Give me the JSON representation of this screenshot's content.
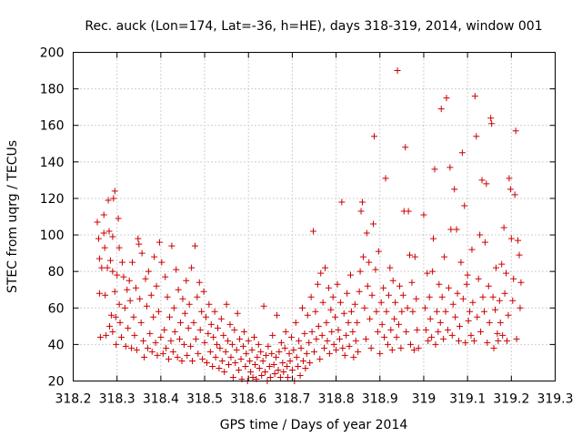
{
  "chart_data": {
    "type": "scatter",
    "title": "Rec. auck (Lon=174, Lat=-36, h=HE), days 318-319, 2014, window 001",
    "xlabel": "GPS time / Days of year 2014",
    "ylabel": "STEC from uqrg / TECUs",
    "xlim": [
      318.2,
      319.3
    ],
    "ylim": [
      20,
      200
    ],
    "xticks": [
      "318.2",
      "318.3",
      "318.4",
      "318.5",
      "318.6",
      "318.7",
      "318.8",
      "318.9",
      "319",
      "319.1",
      "319.2",
      "319.3"
    ],
    "yticks": [
      "20",
      "40",
      "60",
      "80",
      "100",
      "120",
      "140",
      "160",
      "180",
      "200"
    ],
    "grid": true,
    "marker": "plus",
    "color": "#cc0000",
    "points": [
      [
        318.255,
        107
      ],
      [
        318.258,
        98
      ],
      [
        318.26,
        87
      ],
      [
        318.26,
        68
      ],
      [
        318.262,
        44
      ],
      [
        318.265,
        82
      ],
      [
        318.27,
        111
      ],
      [
        318.27,
        101
      ],
      [
        318.272,
        93
      ],
      [
        318.273,
        67
      ],
      [
        318.275,
        45
      ],
      [
        318.278,
        82
      ],
      [
        318.28,
        119
      ],
      [
        318.282,
        102
      ],
      [
        318.283,
        50
      ],
      [
        318.285,
        86
      ],
      [
        318.287,
        56
      ],
      [
        318.29,
        80
      ],
      [
        318.29,
        99
      ],
      [
        318.29,
        47
      ],
      [
        318.292,
        120
      ],
      [
        318.295,
        124
      ],
      [
        318.295,
        69
      ],
      [
        318.297,
        55
      ],
      [
        318.298,
        40
      ],
      [
        318.3,
        78
      ],
      [
        318.303,
        109
      ],
      [
        318.305,
        93
      ],
      [
        318.305,
        62
      ],
      [
        318.307,
        52
      ],
      [
        318.31,
        44
      ],
      [
        318.312,
        85
      ],
      [
        318.315,
        77
      ],
      [
        318.318,
        60
      ],
      [
        318.32,
        39
      ],
      [
        318.323,
        70
      ],
      [
        318.325,
        49
      ],
      [
        318.328,
        75
      ],
      [
        318.33,
        64
      ],
      [
        318.333,
        38
      ],
      [
        318.335,
        85
      ],
      [
        318.338,
        55
      ],
      [
        318.34,
        45
      ],
      [
        318.343,
        71
      ],
      [
        318.345,
        37
      ],
      [
        318.348,
        98
      ],
      [
        318.35,
        95
      ],
      [
        318.352,
        65
      ],
      [
        318.355,
        52
      ],
      [
        318.357,
        90
      ],
      [
        318.36,
        42
      ],
      [
        318.362,
        33
      ],
      [
        318.365,
        76
      ],
      [
        318.368,
        61
      ],
      [
        318.37,
        38
      ],
      [
        318.372,
        80
      ],
      [
        318.375,
        46
      ],
      [
        318.378,
        67
      ],
      [
        318.38,
        36
      ],
      [
        318.383,
        55
      ],
      [
        318.385,
        88
      ],
      [
        318.388,
        41
      ],
      [
        318.39,
        72
      ],
      [
        318.392,
        34
      ],
      [
        318.395,
        58
      ],
      [
        318.397,
        96
      ],
      [
        318.4,
        44
      ],
      [
        318.402,
        85
      ],
      [
        318.405,
        35
      ],
      [
        318.408,
        48
      ],
      [
        318.41,
        77
      ],
      [
        318.412,
        38
      ],
      [
        318.415,
        66
      ],
      [
        318.418,
        32
      ],
      [
        318.42,
        55
      ],
      [
        318.423,
        42
      ],
      [
        318.425,
        94
      ],
      [
        318.428,
        36
      ],
      [
        318.43,
        60
      ],
      [
        318.432,
        47
      ],
      [
        318.435,
        81
      ],
      [
        318.438,
        33
      ],
      [
        318.44,
        70
      ],
      [
        318.443,
        43
      ],
      [
        318.445,
        52
      ],
      [
        318.448,
        31
      ],
      [
        318.45,
        65
      ],
      [
        318.453,
        40
      ],
      [
        318.455,
        57
      ],
      [
        318.458,
        75
      ],
      [
        318.46,
        34
      ],
      [
        318.463,
        49
      ],
      [
        318.465,
        62
      ],
      [
        318.468,
        39
      ],
      [
        318.47,
        82
      ],
      [
        318.472,
        31
      ],
      [
        318.475,
        52
      ],
      [
        318.478,
        94
      ],
      [
        318.48,
        43
      ],
      [
        318.483,
        66
      ],
      [
        318.485,
        35
      ],
      [
        318.488,
        74
      ],
      [
        318.49,
        48
      ],
      [
        318.493,
        58
      ],
      [
        318.495,
        32
      ],
      [
        318.498,
        69
      ],
      [
        318.5,
        41
      ],
      [
        318.503,
        55
      ],
      [
        318.505,
        30
      ],
      [
        318.508,
        46
      ],
      [
        318.51,
        62
      ],
      [
        318.513,
        36
      ],
      [
        318.515,
        51
      ],
      [
        318.518,
        28
      ],
      [
        318.52,
        44
      ],
      [
        318.523,
        58
      ],
      [
        318.525,
        33
      ],
      [
        318.528,
        40
      ],
      [
        318.53,
        49
      ],
      [
        318.533,
        27
      ],
      [
        318.535,
        38
      ],
      [
        318.538,
        54
      ],
      [
        318.54,
        31
      ],
      [
        318.543,
        45
      ],
      [
        318.545,
        25
      ],
      [
        318.548,
        36
      ],
      [
        318.55,
        62
      ],
      [
        318.553,
        42
      ],
      [
        318.555,
        29
      ],
      [
        318.558,
        51
      ],
      [
        318.56,
        33
      ],
      [
        318.563,
        40
      ],
      [
        318.565,
        22
      ],
      [
        318.568,
        48
      ],
      [
        318.57,
        30
      ],
      [
        318.573,
        37
      ],
      [
        318.575,
        57
      ],
      [
        318.578,
        26
      ],
      [
        318.58,
        43
      ],
      [
        318.583,
        32
      ],
      [
        318.585,
        21
      ],
      [
        318.588,
        39
      ],
      [
        318.59,
        47
      ],
      [
        318.593,
        28
      ],
      [
        318.595,
        35
      ],
      [
        318.598,
        20
      ],
      [
        318.6,
        42
      ],
      [
        318.603,
        31
      ],
      [
        318.605,
        25
      ],
      [
        318.608,
        37
      ],
      [
        318.61,
        22
      ],
      [
        318.613,
        44
      ],
      [
        318.615,
        29
      ],
      [
        318.618,
        21
      ],
      [
        318.62,
        33
      ],
      [
        318.623,
        40
      ],
      [
        318.625,
        27
      ],
      [
        318.628,
        36
      ],
      [
        318.63,
        23
      ],
      [
        318.633,
        31
      ],
      [
        318.635,
        61
      ],
      [
        318.638,
        25
      ],
      [
        318.64,
        34
      ],
      [
        318.643,
        20
      ],
      [
        318.645,
        39
      ],
      [
        318.648,
        28
      ],
      [
        318.65,
        22
      ],
      [
        318.653,
        35
      ],
      [
        318.655,
        45
      ],
      [
        318.658,
        29
      ],
      [
        318.66,
        24
      ],
      [
        318.663,
        33
      ],
      [
        318.665,
        56
      ],
      [
        318.668,
        26
      ],
      [
        318.67,
        36
      ],
      [
        318.673,
        22
      ],
      [
        318.675,
        41
      ],
      [
        318.678,
        30
      ],
      [
        318.68,
        25
      ],
      [
        318.683,
        38
      ],
      [
        318.685,
        47
      ],
      [
        318.688,
        28
      ],
      [
        318.69,
        22
      ],
      [
        318.693,
        35
      ],
      [
        318.695,
        31
      ],
      [
        318.698,
        44
      ],
      [
        318.7,
        26
      ],
      [
        318.703,
        37
      ],
      [
        318.705,
        20
      ],
      [
        318.708,
        52
      ],
      [
        318.71,
        33
      ],
      [
        318.713,
        28
      ],
      [
        318.715,
        42
      ],
      [
        318.718,
        23
      ],
      [
        318.72,
        38
      ],
      [
        318.723,
        60
      ],
      [
        318.725,
        31
      ],
      [
        318.728,
        46
      ],
      [
        318.73,
        27
      ],
      [
        318.733,
        35
      ],
      [
        318.735,
        56
      ],
      [
        318.738,
        41
      ],
      [
        318.74,
        30
      ],
      [
        318.743,
        66
      ],
      [
        318.745,
        47
      ],
      [
        318.748,
        102
      ],
      [
        318.75,
        36
      ],
      [
        318.753,
        58
      ],
      [
        318.755,
        43
      ],
      [
        318.758,
        73
      ],
      [
        318.76,
        50
      ],
      [
        318.763,
        32
      ],
      [
        318.765,
        79
      ],
      [
        318.768,
        45
      ],
      [
        318.77,
        63
      ],
      [
        318.773,
        38
      ],
      [
        318.775,
        82
      ],
      [
        318.778,
        52
      ],
      [
        318.78,
        42
      ],
      [
        318.783,
        71
      ],
      [
        318.785,
        35
      ],
      [
        318.788,
        59
      ],
      [
        318.79,
        47
      ],
      [
        318.793,
        66
      ],
      [
        318.795,
        40
      ],
      [
        318.798,
        55
      ],
      [
        318.8,
        37
      ],
      [
        318.803,
        73
      ],
      [
        318.805,
        48
      ],
      [
        318.808,
        43
      ],
      [
        318.81,
        63
      ],
      [
        318.813,
        118
      ],
      [
        318.815,
        38
      ],
      [
        318.818,
        57
      ],
      [
        318.82,
        34
      ],
      [
        318.823,
        45
      ],
      [
        318.825,
        68
      ],
      [
        318.828,
        52
      ],
      [
        318.83,
        39
      ],
      [
        318.833,
        78
      ],
      [
        318.835,
        58
      ],
      [
        318.838,
        47
      ],
      [
        318.84,
        33
      ],
      [
        318.843,
        62
      ],
      [
        318.845,
        42
      ],
      [
        318.848,
        52
      ],
      [
        318.85,
        36
      ],
      [
        318.853,
        69
      ],
      [
        318.855,
        80
      ],
      [
        318.857,
        113
      ],
      [
        318.86,
        118
      ],
      [
        318.862,
        88
      ],
      [
        318.865,
        60
      ],
      [
        318.868,
        43
      ],
      [
        318.87,
        101
      ],
      [
        318.872,
        72
      ],
      [
        318.875,
        85
      ],
      [
        318.877,
        54
      ],
      [
        318.88,
        38
      ],
      [
        318.882,
        67
      ],
      [
        318.885,
        106
      ],
      [
        318.887,
        154
      ],
      [
        318.89,
        81
      ],
      [
        318.892,
        58
      ],
      [
        318.895,
        47
      ],
      [
        318.897,
        91
      ],
      [
        318.9,
        35
      ],
      [
        318.903,
        63
      ],
      [
        318.905,
        51
      ],
      [
        318.908,
        71
      ],
      [
        318.91,
        44
      ],
      [
        318.913,
        131
      ],
      [
        318.915,
        58
      ],
      [
        318.918,
        40
      ],
      [
        318.92,
        67
      ],
      [
        318.923,
        82
      ],
      [
        318.925,
        48
      ],
      [
        318.928,
        37
      ],
      [
        318.93,
        75
      ],
      [
        318.933,
        54
      ],
      [
        318.935,
        63
      ],
      [
        318.938,
        44
      ],
      [
        318.94,
        190
      ],
      [
        318.943,
        51
      ],
      [
        318.945,
        72
      ],
      [
        318.948,
        38
      ],
      [
        318.95,
        58
      ],
      [
        318.953,
        67
      ],
      [
        318.955,
        113
      ],
      [
        318.958,
        148
      ],
      [
        318.96,
        47
      ],
      [
        318.963,
        60
      ],
      [
        318.965,
        113
      ],
      [
        318.968,
        89
      ],
      [
        318.97,
        40
      ],
      [
        318.973,
        74
      ],
      [
        318.975,
        58
      ],
      [
        318.978,
        37
      ],
      [
        318.98,
        88
      ],
      [
        318.983,
        65
      ],
      [
        318.985,
        48
      ],
      [
        318.988,
        38
      ],
      [
        319.0,
        111
      ],
      [
        319.003,
        60
      ],
      [
        319.005,
        48
      ],
      [
        319.008,
        79
      ],
      [
        319.01,
        42
      ],
      [
        319.013,
        66
      ],
      [
        319.015,
        54
      ],
      [
        319.018,
        44
      ],
      [
        319.02,
        80
      ],
      [
        319.022,
        98
      ],
      [
        319.025,
        136
      ],
      [
        319.027,
        40
      ],
      [
        319.03,
        58
      ],
      [
        319.033,
        47
      ],
      [
        319.035,
        73
      ],
      [
        319.038,
        52
      ],
      [
        319.04,
        169
      ],
      [
        319.042,
        66
      ],
      [
        319.045,
        43
      ],
      [
        319.047,
        88
      ],
      [
        319.05,
        58
      ],
      [
        319.052,
        175
      ],
      [
        319.055,
        48
      ],
      [
        319.057,
        71
      ],
      [
        319.06,
        137
      ],
      [
        319.062,
        103
      ],
      [
        319.065,
        45
      ],
      [
        319.067,
        62
      ],
      [
        319.07,
        125
      ],
      [
        319.072,
        55
      ],
      [
        319.075,
        103
      ],
      [
        319.077,
        68
      ],
      [
        319.08,
        42
      ],
      [
        319.082,
        50
      ],
      [
        319.085,
        85
      ],
      [
        319.088,
        145
      ],
      [
        319.09,
        65
      ],
      [
        319.093,
        116
      ],
      [
        319.095,
        41
      ],
      [
        319.098,
        73
      ],
      [
        319.1,
        78
      ],
      [
        319.102,
        53
      ],
      [
        319.105,
        58
      ],
      [
        319.108,
        45
      ],
      [
        319.11,
        92
      ],
      [
        319.112,
        63
      ],
      [
        319.115,
        42
      ],
      [
        319.117,
        176
      ],
      [
        319.12,
        154
      ],
      [
        319.122,
        55
      ],
      [
        319.125,
        76
      ],
      [
        319.128,
        100
      ],
      [
        319.13,
        47
      ],
      [
        319.133,
        130
      ],
      [
        319.135,
        66
      ],
      [
        319.138,
        58
      ],
      [
        319.14,
        96
      ],
      [
        319.143,
        128
      ],
      [
        319.145,
        41
      ],
      [
        319.148,
        72
      ],
      [
        319.15,
        52
      ],
      [
        319.153,
        164
      ],
      [
        319.155,
        161
      ],
      [
        319.158,
        66
      ],
      [
        319.16,
        38
      ],
      [
        319.163,
        59
      ],
      [
        319.165,
        82
      ],
      [
        319.168,
        46
      ],
      [
        319.17,
        42
      ],
      [
        319.173,
        64
      ],
      [
        319.175,
        52
      ],
      [
        319.178,
        84
      ],
      [
        319.18,
        45
      ],
      [
        319.183,
        104
      ],
      [
        319.185,
        68
      ],
      [
        319.188,
        79
      ],
      [
        319.19,
        42
      ],
      [
        319.193,
        56
      ],
      [
        319.195,
        131
      ],
      [
        319.198,
        125
      ],
      [
        319.2,
        98
      ],
      [
        319.203,
        64
      ],
      [
        319.205,
        76
      ],
      [
        319.208,
        122
      ],
      [
        319.21,
        157
      ],
      [
        319.212,
        43
      ],
      [
        319.215,
        97
      ],
      [
        319.218,
        89
      ],
      [
        319.22,
        60
      ],
      [
        319.222,
        74
      ]
    ]
  }
}
